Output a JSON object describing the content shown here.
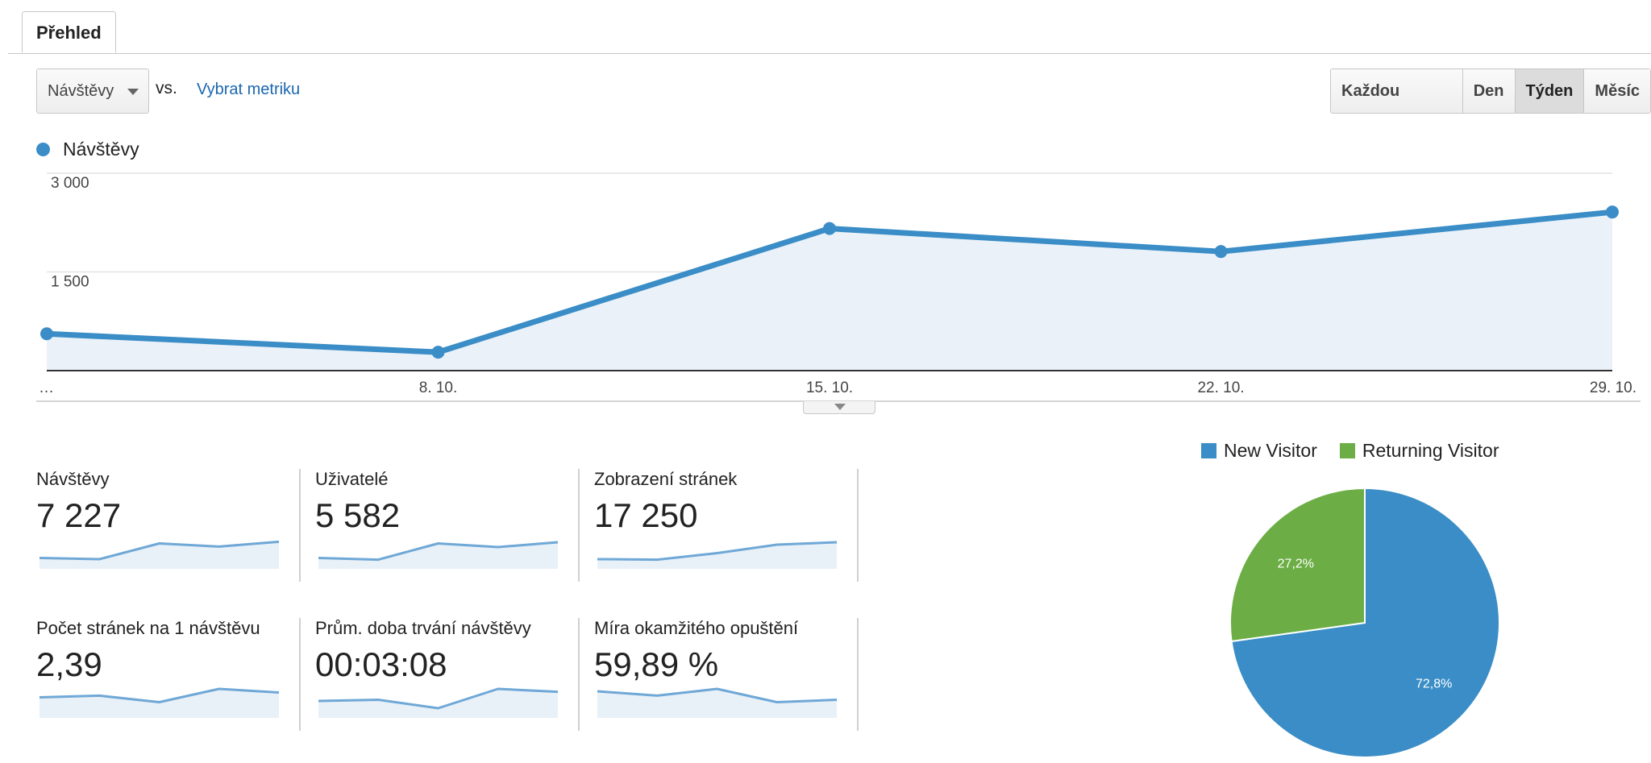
{
  "tabs": {
    "overview": "Přehled"
  },
  "toolbar": {
    "metric_selected": "Návštěvy",
    "vs_label": "vs.",
    "pick_metric_link": "Vybrat metriku",
    "range_buttons": [
      {
        "label": "Každou hodinu",
        "active": false
      },
      {
        "label": "Den",
        "active": false
      },
      {
        "label": "Týden",
        "active": true
      },
      {
        "label": "Měsíc",
        "active": false
      }
    ]
  },
  "legend": {
    "series_label": "Návštěvy",
    "series_color": "#3a8dc6"
  },
  "chart_data": {
    "type": "area",
    "title": "",
    "xlabel": "",
    "ylabel": "",
    "x_ticks": [
      "…",
      "8. 10.",
      "15. 10.",
      "22. 10.",
      "29. 10."
    ],
    "y_ticks": [
      "3 000",
      "1 500"
    ],
    "ylim": [
      0,
      3000
    ],
    "grid": true,
    "series": [
      {
        "name": "Návštěvy",
        "color": "#3a8dc6",
        "values": [
          560,
          280,
          2160,
          1810,
          2410
        ]
      }
    ]
  },
  "scorecards": [
    {
      "label": "Návštěvy",
      "value": "7 227",
      "spark": [
        0.25,
        0.2,
        0.85,
        0.72,
        0.92
      ]
    },
    {
      "label": "Uživatelé",
      "value": "5 582",
      "spark": [
        0.25,
        0.18,
        0.85,
        0.7,
        0.9
      ]
    },
    {
      "label": "Zobrazení stránek",
      "value": "17 250",
      "spark": [
        0.2,
        0.18,
        0.45,
        0.8,
        0.9
      ]
    },
    {
      "label": "Počet stránek na 1 návštěvu",
      "value": "2,39",
      "spark": [
        0.65,
        0.72,
        0.45,
        1.0,
        0.85
      ]
    },
    {
      "label": "Prům. doba trvání návštěvy",
      "value": "00:03:08",
      "spark": [
        0.5,
        0.55,
        0.2,
        1.0,
        0.88
      ]
    },
    {
      "label": "Míra okamžitého opuštění",
      "value": "59,89 %",
      "spark": [
        0.9,
        0.72,
        1.0,
        0.45,
        0.55
      ]
    }
  ],
  "pie": {
    "legend": [
      {
        "label": "New Visitor",
        "color": "#3a8dc6"
      },
      {
        "label": "Returning Visitor",
        "color": "#6cae45"
      }
    ],
    "slices": [
      {
        "label": "New Visitor",
        "value": 72.8,
        "text": "72,8%",
        "color": "#3a8dc6"
      },
      {
        "label": "Returning Visitor",
        "value": 27.2,
        "text": "27,2%",
        "color": "#6cae45"
      }
    ]
  }
}
